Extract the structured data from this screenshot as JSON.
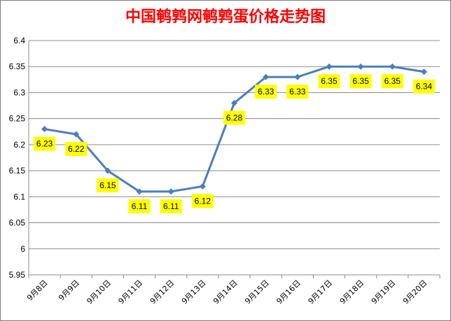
{
  "chart_data": {
    "type": "line",
    "title": "中国鹌鹑网鹌鹑蛋价格走势图",
    "categories": [
      "9月8日",
      "9月9日",
      "9月10日",
      "9月11日",
      "9月12日",
      "9月13日",
      "9月14日",
      "9月15日",
      "9月16日",
      "9月17日",
      "9月18日",
      "9月19日",
      "9月20日"
    ],
    "series": [
      {
        "values": [
          6.23,
          6.22,
          6.15,
          6.11,
          6.11,
          6.12,
          6.28,
          6.33,
          6.33,
          6.35,
          6.35,
          6.35,
          6.34
        ]
      }
    ],
    "data_labels": [
      "6.23",
      "6.22",
      "6.15",
      "6.11",
      "6.11",
      "6.12",
      "6.28",
      "6.33",
      "6.33",
      "6.35",
      "6.35",
      "6.35",
      "6.34"
    ],
    "ylim": [
      5.95,
      6.4
    ],
    "yticks": [
      "6.4",
      "6.35",
      "6.3",
      "6.25",
      "6.2",
      "6.15",
      "6.1",
      "6.05",
      "6",
      "5.95"
    ],
    "grid": true,
    "legend": "none",
    "colors": {
      "line": "#4a7ebb",
      "label_bg": "#ffff00",
      "title": "#ff0000"
    }
  }
}
